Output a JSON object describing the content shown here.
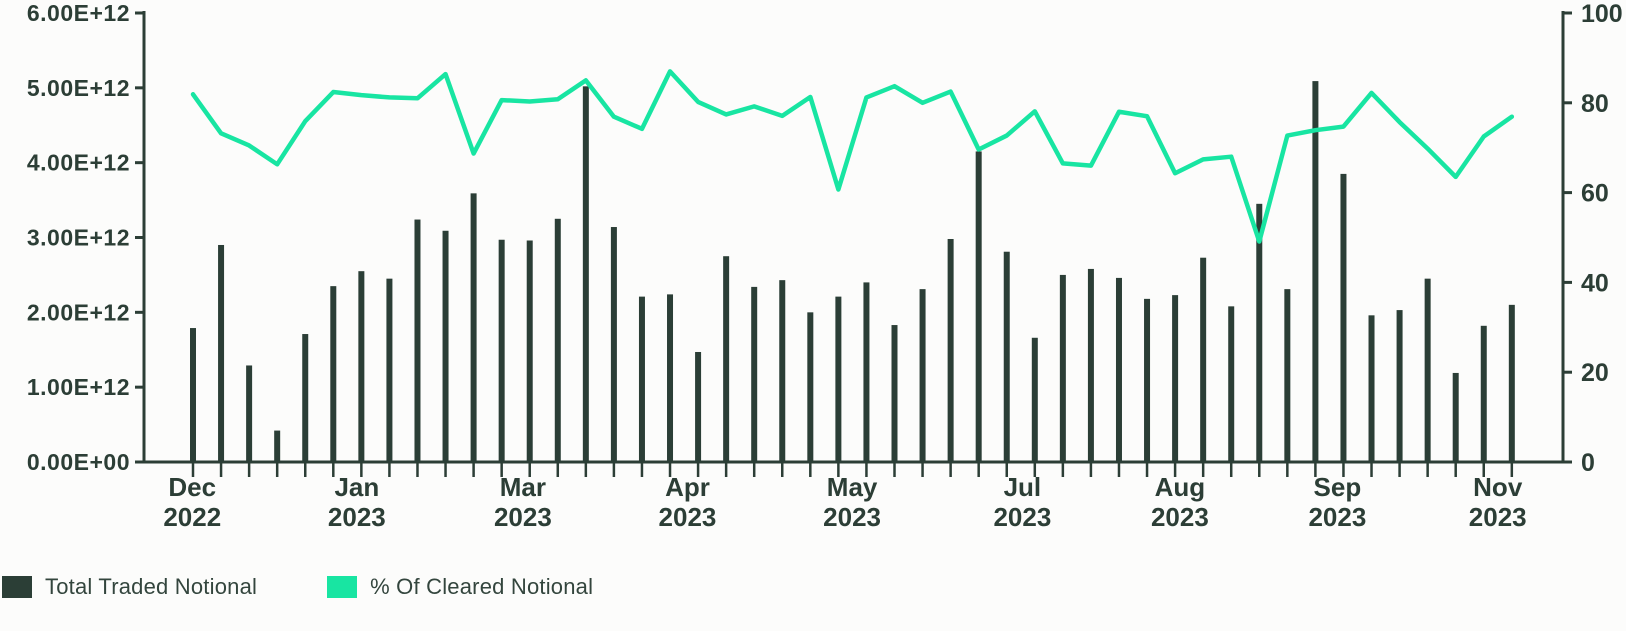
{
  "chart_data": {
    "type": "combo",
    "title": "",
    "n_points": 48,
    "grid": false,
    "legend_position": "bottom-left",
    "colors": {
      "bar": "#2b3e36",
      "line": "#18e5a2",
      "axis": "#2c3e36",
      "text": "#2c3e36",
      "background": "#fcfcfb"
    },
    "series": [
      {
        "name": "Total Traded Notional",
        "type": "bar",
        "yaxis": "left",
        "unit": "E+12",
        "values_e12": [
          1.79,
          2.9,
          1.29,
          0.42,
          1.71,
          2.35,
          2.55,
          2.45,
          3.24,
          3.09,
          3.59,
          2.97,
          2.96,
          3.25,
          5.02,
          3.14,
          2.21,
          2.24,
          1.47,
          2.75,
          2.34,
          2.43,
          2.0,
          2.21,
          2.4,
          1.83,
          2.31,
          2.98,
          4.15,
          2.81,
          1.66,
          2.5,
          2.58,
          2.46,
          2.18,
          2.23,
          2.73,
          2.08,
          3.45,
          2.31,
          5.09,
          3.85,
          1.96,
          2.03,
          2.45,
          1.19,
          1.82,
          2.1
        ]
      },
      {
        "name": "% Of Cleared Notional",
        "type": "line",
        "yaxis": "right",
        "unit": "%",
        "values_pct": [
          81.9,
          73.2,
          70.5,
          66.3,
          75.9,
          82.4,
          81.7,
          81.2,
          81.0,
          86.4,
          68.7,
          80.6,
          80.3,
          80.8,
          85.0,
          76.9,
          74.2,
          87.0,
          80.2,
          77.4,
          79.2,
          77.1,
          81.3,
          60.7,
          81.2,
          83.7,
          80.0,
          82.5,
          69.6,
          72.7,
          78.1,
          66.5,
          66.0,
          78.0,
          77.0,
          64.3,
          67.4,
          68.0,
          49.1,
          72.7,
          73.9,
          74.7,
          82.2,
          75.7,
          69.8,
          63.5,
          72.5,
          76.9
        ]
      }
    ],
    "left_axis": {
      "min": 0,
      "max": 6000000000000.0,
      "tick_labels": [
        "0.00E+00",
        "1.00E+12",
        "2.00E+12",
        "3.00E+12",
        "4.00E+12",
        "5.00E+12",
        "6.00E+12"
      ]
    },
    "right_axis": {
      "min": 0,
      "max": 100,
      "tick_labels": [
        "0",
        "20",
        "40",
        "60",
        "80",
        "100"
      ]
    },
    "x_axis": {
      "tick_labels": [
        {
          "line1": "Dec",
          "line2": "2022",
          "frac": 0.034
        },
        {
          "line1": "Jan",
          "line2": "2023",
          "frac": 0.15
        },
        {
          "line1": "Mar",
          "line2": "2023",
          "frac": 0.267
        },
        {
          "line1": "Apr",
          "line2": "2023",
          "frac": 0.383
        },
        {
          "line1": "May",
          "line2": "2023",
          "frac": 0.499
        },
        {
          "line1": "Jul",
          "line2": "2023",
          "frac": 0.619
        },
        {
          "line1": "Aug",
          "line2": "2023",
          "frac": 0.73
        },
        {
          "line1": "Sep",
          "line2": "2023",
          "frac": 0.841
        },
        {
          "line1": "Nov",
          "line2": "2023",
          "frac": 0.954
        }
      ]
    }
  },
  "legend": {
    "items": [
      {
        "label": "Total Traded Notional",
        "color": "#2b3e36"
      },
      {
        "label": "% Of Cleared Notional",
        "color": "#18e5a2"
      }
    ]
  }
}
